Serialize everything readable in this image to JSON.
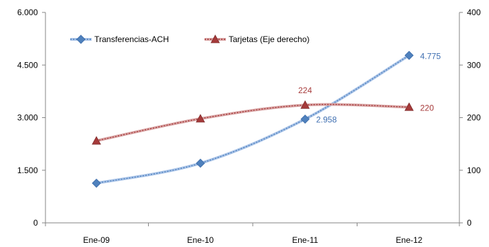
{
  "chart_data": {
    "type": "line",
    "categories": [
      "Ene-09",
      "Ene-10",
      "Ene-11",
      "Ene-12"
    ],
    "y_left": {
      "min": 0,
      "max": 6000,
      "ticks": [
        "0",
        "1.500",
        "3.000",
        "4.500",
        "6.000"
      ],
      "tick_values": [
        0,
        1500,
        3000,
        4500,
        6000
      ]
    },
    "y_right": {
      "min": 0,
      "max": 400,
      "ticks": [
        "0",
        "100",
        "200",
        "300",
        "400"
      ],
      "tick_values": [
        0,
        100,
        200,
        300,
        400
      ]
    },
    "series": [
      {
        "name": "Transferencias-ACH",
        "axis": "left",
        "color": "#4f81bd",
        "marker": "diamond",
        "values": [
          1130,
          1700,
          2958,
          4775
        ],
        "labels": [
          "",
          "",
          "2.958",
          "4.775"
        ]
      },
      {
        "name": "Tarjetas (Eje derecho)",
        "axis": "right",
        "color": "#a63a3a",
        "marker": "triangle",
        "values": [
          156,
          198,
          224,
          220
        ],
        "labels": [
          "",
          "",
          "224",
          "220"
        ]
      }
    ],
    "legend_position": "top-left",
    "grid": false
  }
}
